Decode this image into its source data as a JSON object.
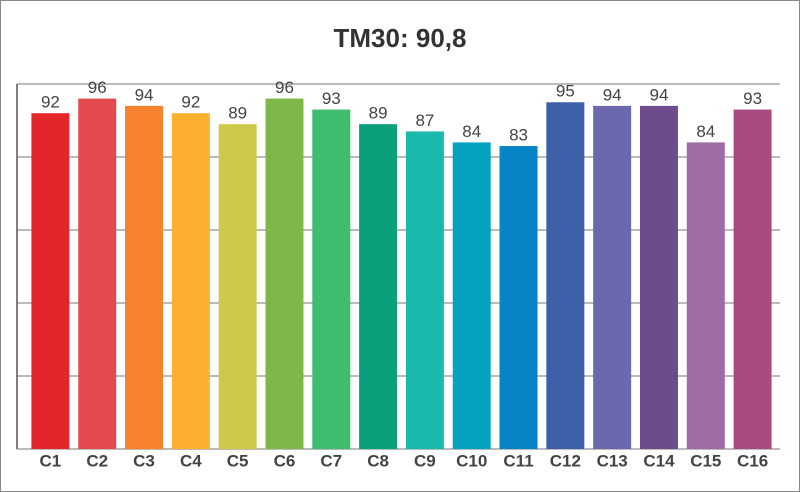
{
  "chart_data": {
    "type": "bar",
    "title": "TM30: 90,8",
    "categories": [
      "C1",
      "C2",
      "C3",
      "C4",
      "C5",
      "C6",
      "C7",
      "C8",
      "C9",
      "C10",
      "C11",
      "C12",
      "C13",
      "C14",
      "C15",
      "C16"
    ],
    "values": [
      92,
      96,
      94,
      92,
      89,
      96,
      93,
      89,
      87,
      84,
      83,
      95,
      94,
      94,
      84,
      93
    ],
    "colors": [
      "#e3262b",
      "#e54a4e",
      "#f6822e",
      "#fbb12f",
      "#cdc94a",
      "#7fb84a",
      "#3dbd6d",
      "#0ba07c",
      "#19b9ad",
      "#05a3c0",
      "#0783c6",
      "#3d60a8",
      "#6c68ad",
      "#6c4c8a",
      "#9e6ba5",
      "#a84b7e"
    ],
    "ylim": [
      0,
      100
    ],
    "yticks": [
      0,
      20,
      40,
      60,
      80,
      100
    ],
    "grid": true
  }
}
